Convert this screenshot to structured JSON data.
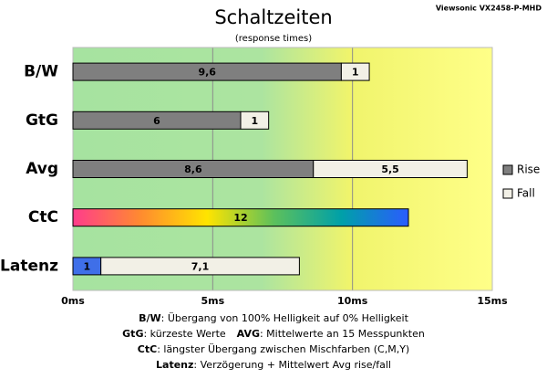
{
  "chart_data": {
    "type": "stacked-barh",
    "title": "Schaltzeiten",
    "subtitle": "(response times)",
    "source": "Viewsonic VX2458-P-MHD",
    "categories": [
      "B/W",
      "GtG",
      "Avg",
      "CtC",
      "Latenz"
    ],
    "series": [
      {
        "name": "Rise",
        "color": "#7f7f7f",
        "values": [
          9.6,
          6,
          8.6,
          12,
          1
        ],
        "value_labels": [
          "9,6",
          "6",
          "8,6",
          "12",
          "1"
        ]
      },
      {
        "name": "Fall",
        "color": "#f2f0e6",
        "values": [
          1,
          1,
          5.5,
          null,
          7.1
        ],
        "value_labels": [
          "1",
          "1",
          "5,5",
          null,
          "7,1"
        ]
      }
    ],
    "special_fills": [
      null,
      null,
      null,
      [
        "#ff3c8c",
        "#ff8a30",
        "#ffe400",
        "#5cc05c",
        "#00a0a8",
        "#2a5cff"
      ],
      [
        "#3f6fe8"
      ]
    ],
    "xlim": [
      0,
      15
    ],
    "xticks": [
      {
        "value": 0,
        "label": "0ms"
      },
      {
        "value": 5,
        "label": "5ms"
      },
      {
        "value": 10,
        "label": "10ms"
      },
      {
        "value": 15,
        "label": "15ms"
      }
    ],
    "grid": true,
    "legend": "right",
    "notes": [
      [
        {
          "term": "B/W",
          "text": ":  Übergang von 100% Helligkeit auf 0% Helligkeit"
        }
      ],
      [
        {
          "term": "GtG",
          "text": ": kürzeste  Werte"
        },
        {
          "term": "AVG",
          "text": ": Mittelwerte an 15 Messpunkten"
        }
      ],
      [
        {
          "term": "CtC",
          "text": ": längster Übergang  zwischen Mischfarben  (C,M,Y)"
        }
      ],
      [
        {
          "term": "Latenz",
          "text": ": Verzögerung  + Mittelwert  Avg rise/fall"
        }
      ]
    ]
  }
}
